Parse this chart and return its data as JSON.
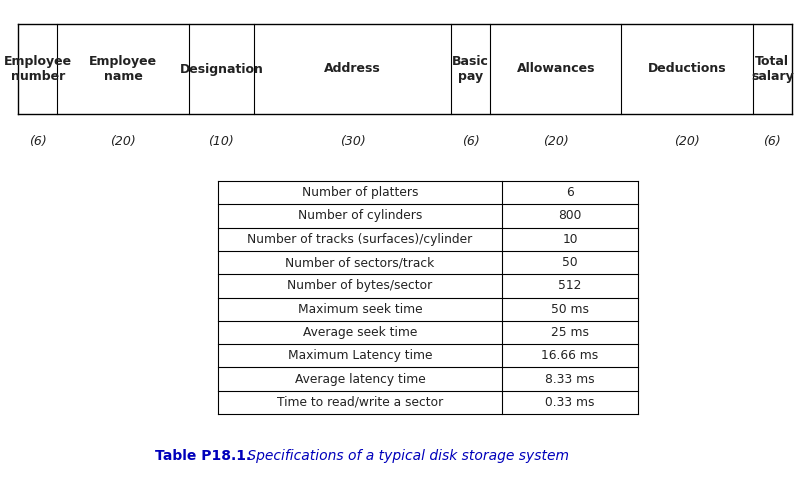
{
  "bg_color": "#ffffff",
  "top_table": {
    "headers": [
      "Employee\nnumber",
      "Employee\nname",
      "Designation",
      "Address",
      "Basic\npay",
      "Allowances",
      "Deductions",
      "Total\nsalary"
    ],
    "widths": [
      6,
      20,
      10,
      30,
      6,
      20,
      20,
      6
    ],
    "width_labels": [
      "(6)",
      "(20)",
      "(10)",
      "(30)",
      "(6)",
      "(20)",
      "(20)",
      "(6)"
    ]
  },
  "bottom_table": {
    "rows": [
      [
        "Number of platters",
        "6"
      ],
      [
        "Number of cylinders",
        "800"
      ],
      [
        "Number of tracks (surfaces)/cylinder",
        "10"
      ],
      [
        "Number of sectors/track",
        "50"
      ],
      [
        "Number of bytes/sector",
        "512"
      ],
      [
        "Maximum seek time",
        "50 ms"
      ],
      [
        "Average seek time",
        "25 ms"
      ],
      [
        "Maximum Latency time",
        "16.66 ms"
      ],
      [
        "Average latency time",
        "8.33 ms"
      ],
      [
        "Time to read/write a sector",
        "0.33 ms"
      ]
    ]
  },
  "caption_bold": "Table P18.1.",
  "caption_italic": " Specifications of a typical disk storage system",
  "caption_color": "#0000bb",
  "text_color": "#222222",
  "header_fontsize": 9.0,
  "body_fontsize": 8.8,
  "label_fontsize": 9.0,
  "caption_fontsize": 10.0,
  "fig_width": 8.09,
  "fig_height": 4.96,
  "dpi": 100
}
